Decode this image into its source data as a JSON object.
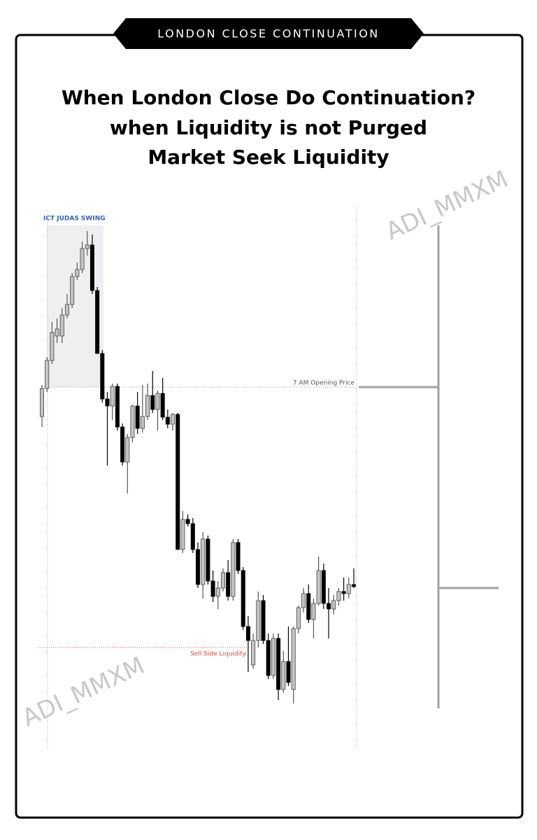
{
  "header": {
    "banner": "LONDON CLOSE CONTINUATION",
    "title_lines": [
      "When London Close Do Continuation?",
      "when Liquidity is not Purged",
      "Market Seek Liquidity"
    ]
  },
  "watermarks": [
    "ADI_MMXM",
    "ADI_MMXM"
  ],
  "chart_data": {
    "type": "candlestick",
    "highlight_label": "ICT JUDAS SWING",
    "up_color": "#c4c4c4",
    "down_color": "#000000",
    "ylim": [
      30,
      805
    ],
    "open": [
      505,
      545,
      585,
      620,
      620,
      650,
      665,
      705,
      715,
      745,
      750,
      685,
      595,
      530,
      520,
      548,
      490,
      440,
      475,
      520,
      488,
      505,
      535,
      515,
      538,
      504,
      494,
      508,
      315,
      358,
      352,
      315,
      265,
      330,
      270,
      248,
      260,
      282,
      248,
      325,
      285,
      205,
      150,
      185,
      242,
      185,
      135,
      188,
      115,
      155,
      115,
      202,
      232,
      252,
      215,
      238,
      285,
      238,
      230,
      242,
      255,
      252,
      265
    ],
    "high": [
      550,
      590,
      640,
      645,
      660,
      680,
      710,
      725,
      755,
      770,
      765,
      690,
      600,
      540,
      552,
      552,
      495,
      480,
      522,
      540,
      550,
      552,
      570,
      542,
      560,
      515,
      510,
      510,
      370,
      365,
      360,
      325,
      340,
      335,
      285,
      270,
      288,
      300,
      330,
      330,
      290,
      220,
      195,
      255,
      250,
      195,
      195,
      195,
      170,
      205,
      205,
      235,
      260,
      265,
      245,
      305,
      295,
      260,
      250,
      260,
      275,
      275,
      288
    ],
    "low": [
      490,
      540,
      580,
      610,
      610,
      645,
      660,
      700,
      710,
      735,
      680,
      595,
      525,
      435,
      500,
      485,
      435,
      395,
      468,
      480,
      482,
      500,
      510,
      485,
      500,
      488,
      485,
      315,
      310,
      348,
      310,
      260,
      245,
      265,
      240,
      230,
      255,
      242,
      242,
      280,
      200,
      140,
      145,
      175,
      180,
      130,
      130,
      100,
      110,
      120,
      95,
      195,
      225,
      210,
      188,
      235,
      230,
      188,
      222,
      235,
      242,
      245,
      260
    ],
    "close": [
      545,
      585,
      625,
      630,
      650,
      665,
      705,
      715,
      745,
      750,
      685,
      595,
      530,
      520,
      548,
      490,
      440,
      475,
      520,
      488,
      505,
      535,
      515,
      538,
      504,
      494,
      508,
      315,
      358,
      352,
      315,
      265,
      330,
      270,
      248,
      260,
      282,
      248,
      325,
      285,
      205,
      185,
      185,
      242,
      185,
      135,
      188,
      115,
      155,
      125,
      202,
      232,
      252,
      215,
      238,
      285,
      238,
      230,
      242,
      255,
      252,
      265,
      262
    ],
    "annotations": [
      {
        "label": "7 AM Opening Price",
        "value": 547,
        "color": "#9a9a9a"
      },
      {
        "label": "Sell Side Liquidity",
        "value": 175,
        "color": "#e0453a"
      }
    ]
  }
}
